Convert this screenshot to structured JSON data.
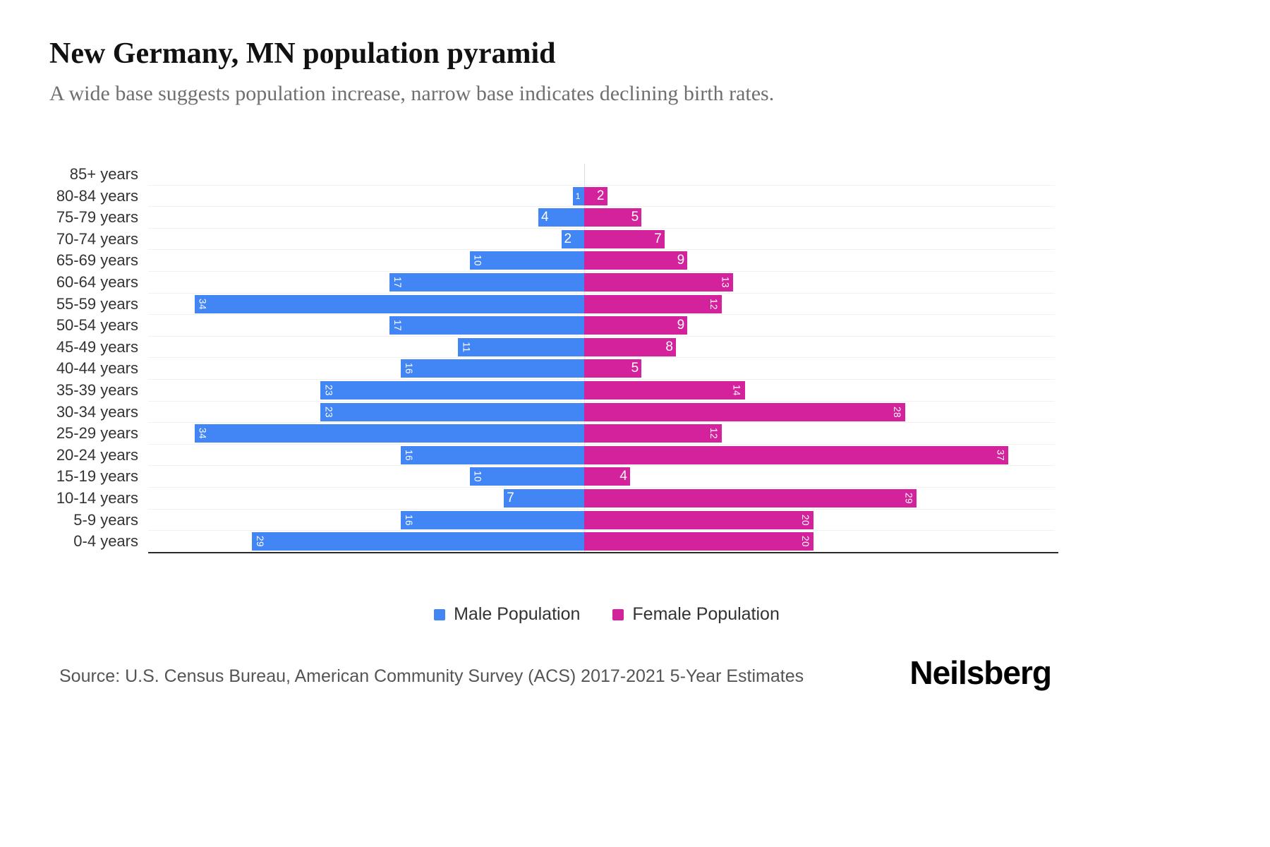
{
  "header": {
    "title": "New Germany, MN population pyramid",
    "subtitle": "A wide base suggests population increase, narrow base indicates declining birth rates."
  },
  "legend": {
    "male": "Male Population",
    "female": "Female Population"
  },
  "footer": {
    "source": "Source: U.S. Census Bureau, American Community Survey (ACS) 2017-2021 5-Year Estimates",
    "brand": "Neilsberg"
  },
  "colors": {
    "male": "#4285f4",
    "female": "#d4219c"
  },
  "chart_data": {
    "type": "bar",
    "subtype": "population-pyramid",
    "orientation": "horizontal",
    "title": "New Germany, MN population pyramid",
    "legend_position": "bottom",
    "grid": "horizontal-faint",
    "value_range": [
      0,
      37
    ],
    "categories": [
      "85+ years",
      "80-84 years",
      "75-79 years",
      "70-74 years",
      "65-69 years",
      "60-64 years",
      "55-59 years",
      "50-54 years",
      "45-49 years",
      "40-44 years",
      "35-39 years",
      "30-34 years",
      "25-29 years",
      "20-24 years",
      "15-19 years",
      "10-14 years",
      "5-9 years",
      "0-4 years"
    ],
    "series": [
      {
        "name": "Male Population",
        "side": "left",
        "color": "#4285f4",
        "values": [
          0,
          1,
          4,
          2,
          10,
          17,
          34,
          17,
          11,
          16,
          23,
          23,
          34,
          16,
          10,
          7,
          16,
          29
        ]
      },
      {
        "name": "Female Population",
        "side": "right",
        "color": "#d4219c",
        "values": [
          0,
          2,
          5,
          7,
          9,
          13,
          12,
          9,
          8,
          5,
          14,
          28,
          12,
          37,
          4,
          29,
          20,
          20
        ]
      }
    ]
  }
}
